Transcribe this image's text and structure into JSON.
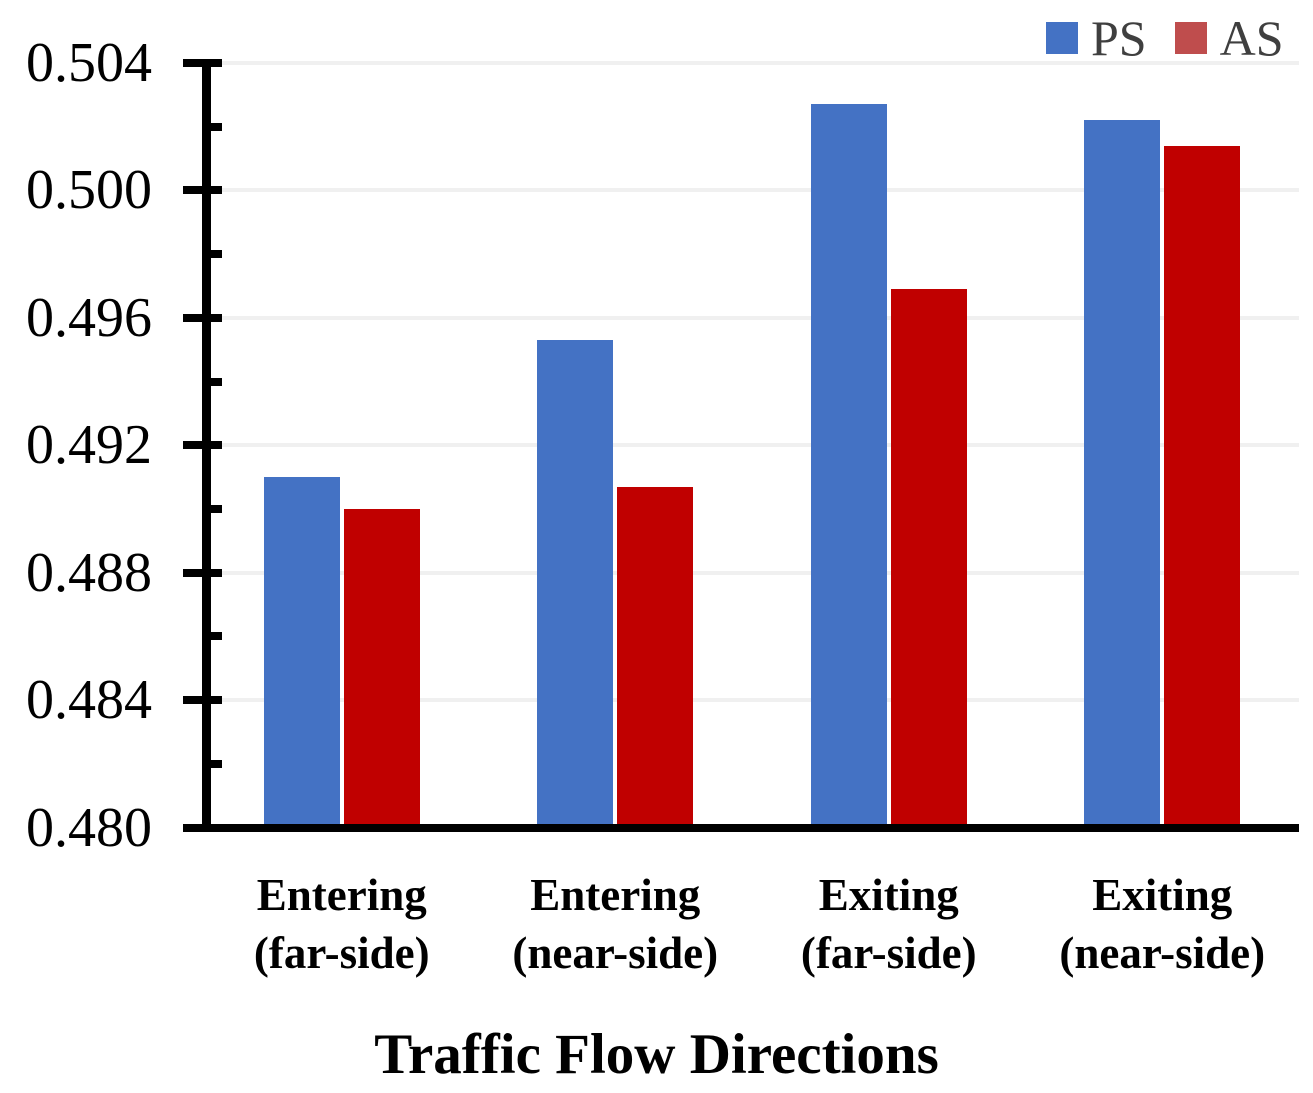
{
  "chart_data": {
    "type": "bar",
    "title": "",
    "xlabel": "Traffic Flow Directions",
    "ylabel": "",
    "categories": [
      "Entering\n(far-side)",
      "Entering\n(near-side)",
      "Exiting\n(far-side)",
      "Exiting\n(near-side)"
    ],
    "series": [
      {
        "name": "PS",
        "color": "#4472C4",
        "legend_color": "#4472C4",
        "values": [
          0.491,
          0.4953,
          0.5027,
          0.5022
        ]
      },
      {
        "name": "AS",
        "color": "#C00000",
        "legend_color": "#BF4D4D",
        "values": [
          0.49,
          0.4907,
          0.4969,
          0.5014
        ]
      }
    ],
    "ylim": [
      0.48,
      0.504
    ],
    "ytick_step": 0.004,
    "ytick_minor_step": 0.002,
    "ytick_labels": [
      "0.480",
      "0.484",
      "0.488",
      "0.492",
      "0.496",
      "0.500",
      "0.504"
    ],
    "grid": "horizontal-major",
    "legend_position": "top-right"
  },
  "colors": {
    "axis": "#000000",
    "gridline": "#F0F0F0",
    "legend_text": "#3F3F3F",
    "background": "#FFFFFF"
  }
}
